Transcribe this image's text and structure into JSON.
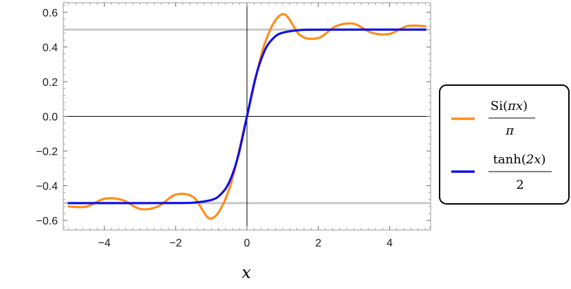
{
  "chart_data": {
    "type": "line",
    "xlabel": "x",
    "ylabel": "",
    "title": "",
    "xlim": [
      -5.15,
      5.15
    ],
    "ylim": [
      -0.655,
      0.655
    ],
    "x_ticks": [
      -4,
      -2,
      0,
      2,
      4
    ],
    "x_tick_labels": [
      "−4",
      "−2",
      "0",
      "2",
      "4"
    ],
    "y_ticks": [
      -0.6,
      -0.4,
      -0.2,
      0.0,
      0.2,
      0.4,
      0.6
    ],
    "y_tick_labels": [
      "−0.6",
      "−0.4",
      "−0.2",
      "0.0",
      "0.2",
      "0.4",
      "0.6"
    ],
    "reference_lines": [
      0.5,
      -0.5
    ],
    "grid": false,
    "legend_position": "right",
    "colors": {
      "si": "#ff8c1a",
      "tanh": "#1010e6",
      "reference": "#c8c8c8"
    },
    "series": [
      {
        "function": "Si(pi x)/pi",
        "legend": {
          "func": "Si",
          "open": "(",
          "arg": "πx",
          "close": ")",
          "denominator": "π"
        },
        "x": [
          -5.0,
          -4.5,
          -4.0,
          -3.5,
          -3.0,
          -2.5,
          -2.0,
          -1.5,
          -1.0,
          -0.5,
          0.0,
          0.5,
          1.0,
          1.5,
          2.0,
          2.5,
          3.0,
          3.5,
          4.0,
          4.5,
          5.0
        ],
        "y": [
          -0.5197,
          -0.5206,
          -0.4754,
          -0.4818,
          -0.5334,
          -0.5202,
          -0.4514,
          -0.4662,
          -0.5895,
          -0.4202,
          0.0,
          0.4202,
          0.5895,
          0.4662,
          0.4514,
          0.5202,
          0.5334,
          0.4818,
          0.4754,
          0.5206,
          0.5197
        ]
      },
      {
        "function": "tanh(2x)/2",
        "legend": {
          "func": "tanh",
          "open": "(",
          "arg": "2x",
          "close": ")",
          "denominator": "2"
        },
        "x": [
          -5.0,
          -4.0,
          -3.0,
          -2.0,
          -1.5,
          -1.0,
          -0.75,
          -0.5,
          -0.25,
          0.0,
          0.25,
          0.5,
          0.75,
          1.0,
          1.5,
          2.0,
          3.0,
          4.0,
          5.0
        ],
        "y": [
          -0.5,
          -0.5,
          -0.5,
          -0.4997,
          -0.4975,
          -0.482,
          -0.4526,
          -0.3808,
          -0.2311,
          0.0,
          0.2311,
          0.3808,
          0.4526,
          0.482,
          0.4975,
          0.4997,
          0.5,
          0.5,
          0.5
        ]
      }
    ]
  }
}
